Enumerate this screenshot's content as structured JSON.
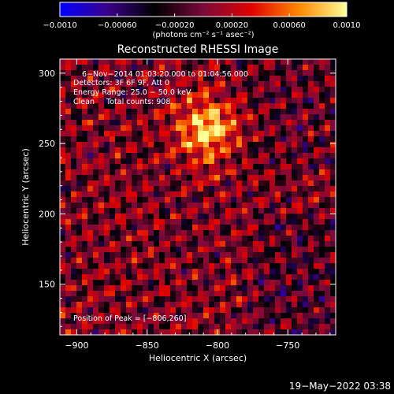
{
  "chart_data": {
    "type": "heatmap",
    "title": "Reconstructed RHESSI Image",
    "xlabel": "Heliocentric X (arcsec)",
    "ylabel": "Heliocentric Y (arcsec)",
    "xlim": [
      -912,
      -716
    ],
    "ylim": [
      114,
      310
    ],
    "x_ticks": [
      -900,
      -850,
      -800,
      -750
    ],
    "y_ticks": [
      150,
      200,
      250,
      300
    ],
    "grid": false,
    "colorbar": {
      "ticks": [
        -0.001,
        -0.0006,
        -0.0002,
        0.0002,
        0.0006,
        0.001
      ],
      "tick_labels": [
        "−0.0010",
        "−0.00060",
        "−0.00020",
        "0.00020",
        "0.00060",
        "0.0010"
      ],
      "range": [
        -0.001,
        0.001
      ],
      "unit_label": "(photons cm⁻² s⁻¹ asec⁻²)",
      "colors": [
        "#0000ff",
        "#3a008a",
        "#000000",
        "#7a0a3a",
        "#e00000",
        "#ff8800",
        "#ffff99"
      ]
    },
    "peak": [
      -806,
      260
    ],
    "annotations": [
      "6−Nov−2014 01:03:20.000 to 01:04:56.000",
      "Detectors: 3F 6F 9F, Att 0",
      "Energy Range: 25.0 − 50.0 keV",
      "Clean     Total counts: 908.",
      "Position of Peak = [−806,260]"
    ]
  },
  "footer": {
    "timestamp": "19−May−2022 03:38"
  },
  "colors": {
    "background": "#000000",
    "foreground": "#ffffff"
  }
}
